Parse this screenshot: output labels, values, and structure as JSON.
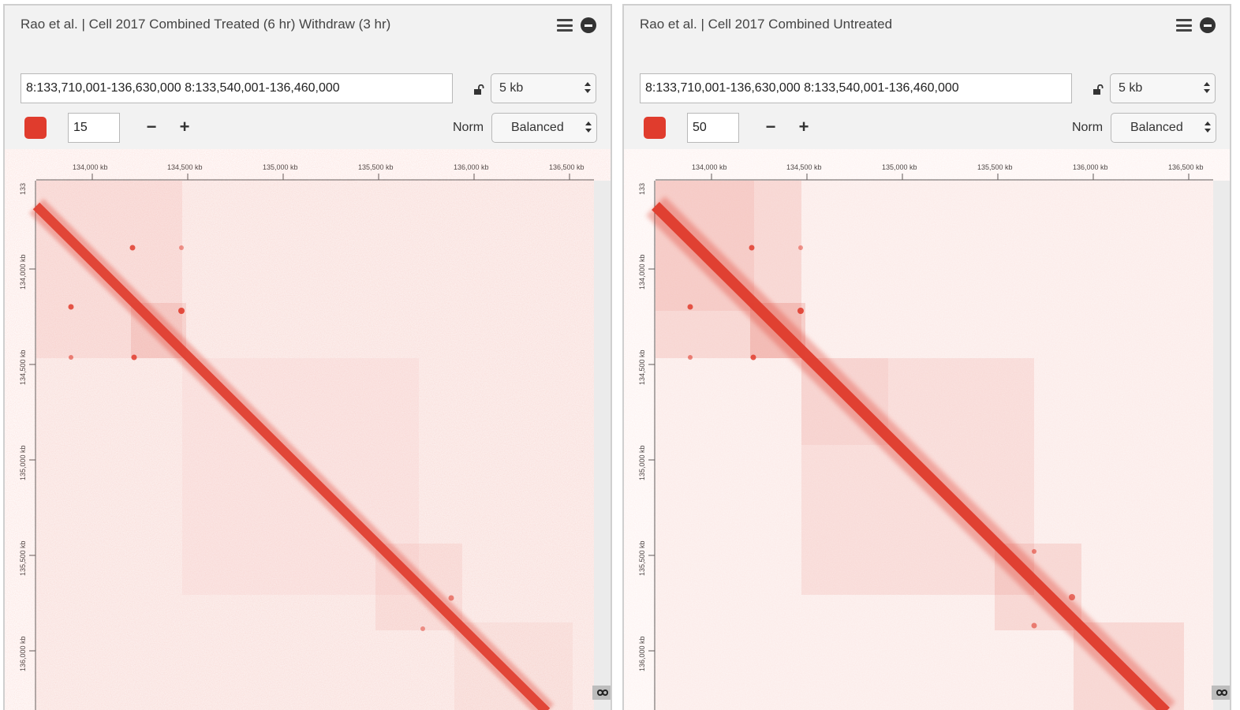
{
  "accent_color": "#e03c2d",
  "panels": [
    {
      "title": "Rao et al. | Cell 2017 Combined Treated (6 hr) Withdraw (3 hr)",
      "locus": "8:133,710,001-136,630,000 8:133,540,001-136,460,000",
      "resolution": "5 kb",
      "color_max": "15",
      "norm_label": "Norm",
      "normalization": "Balanced",
      "icons": [
        "hamburger-menu-icon",
        "remove-panel-icon",
        "lock-icon",
        "infinity-icon"
      ],
      "x_ticks": [
        "134,000 kb",
        "134,500 kb",
        "135,000 kb",
        "135,500 kb",
        "136,000 kb",
        "136,500 kb"
      ],
      "y_ticks": [
        "134,000 kb",
        "134,500 kb",
        "135,000 kb",
        "135,500 kb",
        "136,000 kb"
      ],
      "y_clip_label": "133"
    },
    {
      "title": "Rao et al. | Cell 2017 Combined Untreated",
      "locus": "8:133,710,001-136,630,000 8:133,540,001-136,460,000",
      "resolution": "5 kb",
      "color_max": "50",
      "norm_label": "Norm",
      "normalization": "Balanced",
      "icons": [
        "hamburger-menu-icon",
        "remove-panel-icon",
        "lock-icon",
        "infinity-icon"
      ],
      "x_ticks": [
        "134,000 kb",
        "134,500 kb",
        "135,000 kb",
        "135,500 kb",
        "136,000 kb",
        "136,500 kb"
      ],
      "y_ticks": [
        "134,000 kb",
        "134,500 kb",
        "135,000 kb",
        "135,500 kb",
        "136,000 kb"
      ],
      "y_clip_label": "133"
    }
  ]
}
